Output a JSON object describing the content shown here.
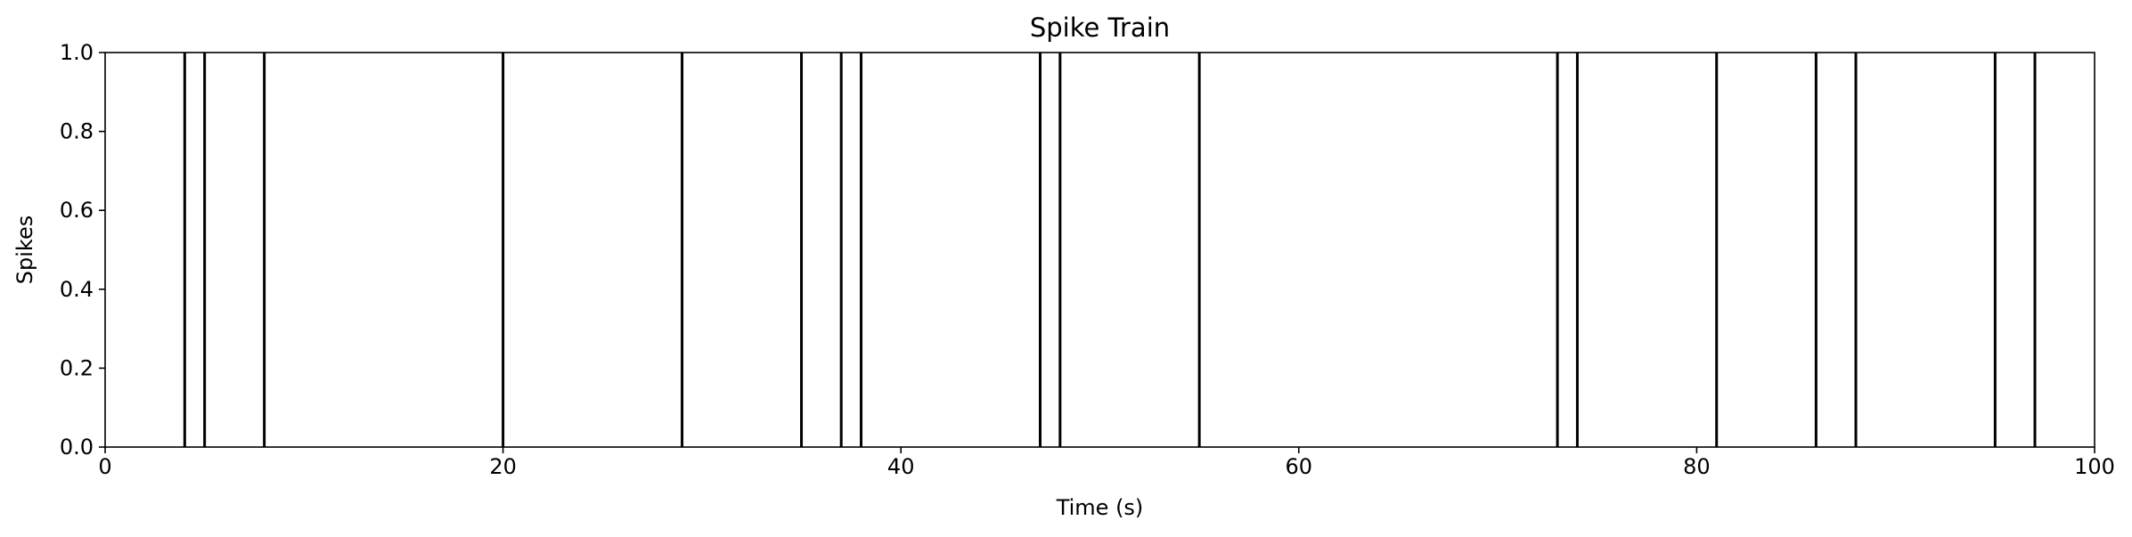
{
  "chart_data": {
    "type": "event-plot",
    "title": "Spike Train",
    "xlabel": "Time (s)",
    "ylabel": "Spikes",
    "xlim": [
      0,
      100
    ],
    "ylim": [
      0,
      1
    ],
    "x_ticks": [
      0,
      20,
      40,
      60,
      80,
      100
    ],
    "x_tick_labels": [
      "0",
      "20",
      "40",
      "60",
      "80",
      "100"
    ],
    "y_ticks": [
      0,
      0.2,
      0.4,
      0.6,
      0.8,
      1.0
    ],
    "y_tick_labels": [
      "0.0",
      "0.2",
      "0.4",
      "0.6",
      "0.8",
      "1.0"
    ],
    "grid": false,
    "legend": false,
    "series": [
      {
        "color": "#000000",
        "x": [
          4,
          5,
          8,
          20,
          29,
          35,
          37,
          38,
          47,
          48,
          55,
          73,
          74,
          81,
          86,
          88,
          95,
          97
        ]
      }
    ]
  }
}
